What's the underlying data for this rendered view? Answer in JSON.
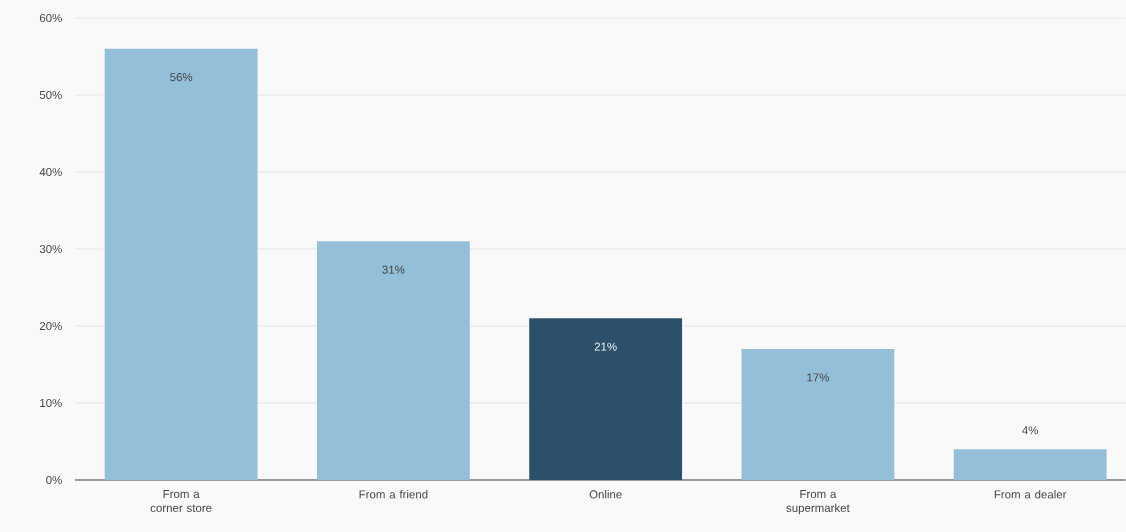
{
  "chart_data": {
    "type": "bar",
    "categories": [
      "From a corner store",
      "From a friend",
      "Online",
      "From a supermarket",
      "From a dealer"
    ],
    "values": [
      56,
      31,
      21,
      17,
      4
    ],
    "colors": [
      "#93bfd8",
      "#93bfd8",
      "#2c5069",
      "#93bfd8",
      "#93bfd8"
    ],
    "value_labels": [
      "56%",
      "31%",
      "21%",
      "17%",
      "4%"
    ],
    "ylim": [
      0,
      60
    ],
    "yticks": [
      {
        "value": 0,
        "label": "0%"
      },
      {
        "value": 10,
        "label": "10%"
      },
      {
        "value": 20,
        "label": "20%"
      },
      {
        "value": 30,
        "label": "30%"
      },
      {
        "value": 40,
        "label": "40%"
      },
      {
        "value": 50,
        "label": "50%"
      },
      {
        "value": 60,
        "label": "60%"
      }
    ],
    "grid": "y"
  }
}
